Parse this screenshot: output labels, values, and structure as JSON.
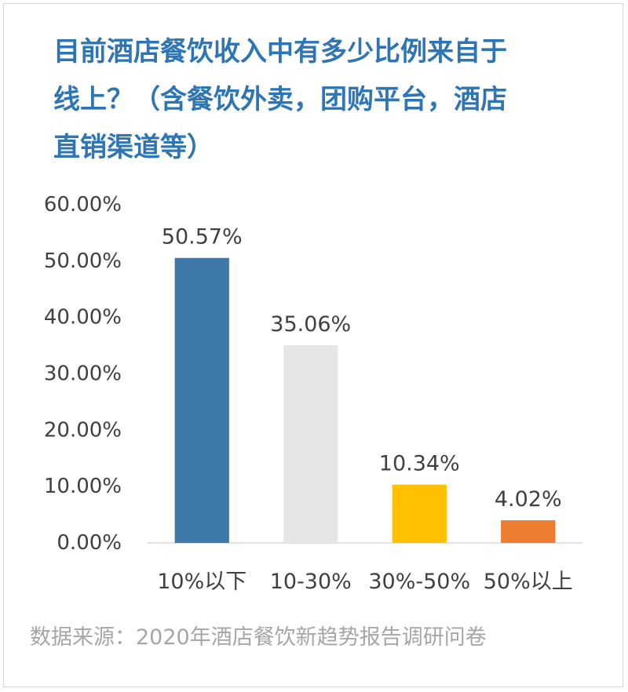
{
  "title_lines": [
    "目前酒店餐饮收入中有多少比例来自于",
    "线上？（含餐饮外卖，团购平台，酒店",
    "直销渠道等）"
  ],
  "source": "数据来源：2020年酒店餐饮新趋势报告调研问卷",
  "chart_data": {
    "type": "bar",
    "title": "目前酒店餐饮收入中有多少比例来自于线上？（含餐饮外卖，团购平台，酒店直销渠道等）",
    "categories": [
      "10%以下",
      "10-30%",
      "30%-50%",
      "50%以上"
    ],
    "values": [
      50.57,
      35.06,
      10.34,
      4.02
    ],
    "data_labels": [
      "50.57%",
      "35.06%",
      "10.34%",
      "4.02%"
    ],
    "colors": [
      "#3e79aa",
      "#e6e6e6",
      "#ffc000",
      "#ed7d31"
    ],
    "ylim": [
      0,
      60
    ],
    "yticks": [
      0,
      10,
      20,
      30,
      40,
      50,
      60
    ],
    "ytick_labels": [
      "0.00%",
      "10.00%",
      "20.00%",
      "30.00%",
      "40.00%",
      "50.00%",
      "60.00%"
    ],
    "xlabel": "",
    "ylabel": "",
    "grid": false,
    "legend": "none"
  }
}
